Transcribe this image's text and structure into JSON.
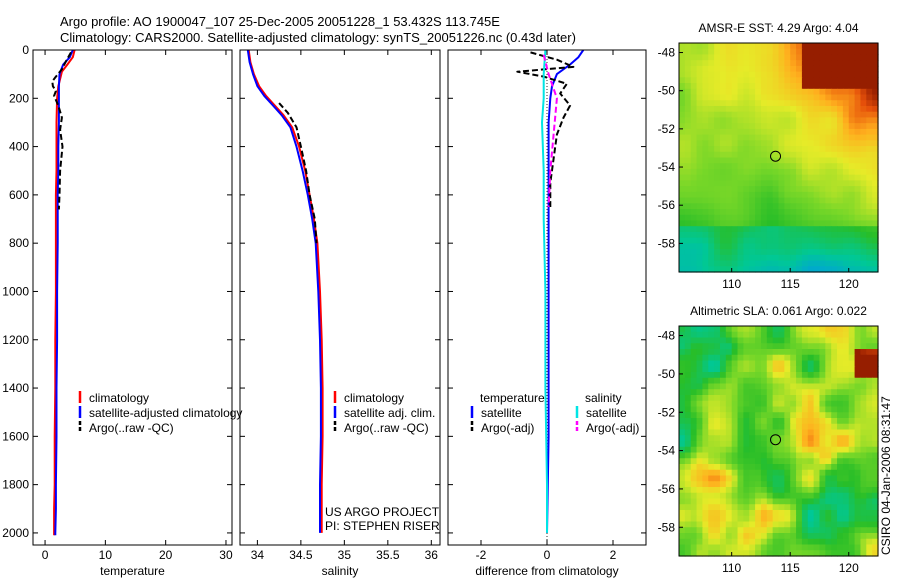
{
  "figure": {
    "title_line1": "Argo profile: AO 1900047_107 25-Dec-2005 20051228_1 53.432S 113.745E",
    "title_line2": "Climatology: CARS2000. Satellite-adjusted climatology: synTS_20051226.nc (0.43d later)",
    "side_caption": "CSIRO 04-Jan-2006 08:31:47"
  },
  "colors": {
    "climatology": "#ff0000",
    "satellite": "#0000ff",
    "argo": "#000000",
    "salinity_satellite": "#00e5e5",
    "salinity_argo": "#ff00ff",
    "marker": "#000000"
  },
  "chart_data": [
    {
      "id": "temperature",
      "type": "line",
      "xlabel": "temperature",
      "xlim": [
        -2,
        31
      ],
      "ylim": [
        0,
        2050
      ],
      "y_reversed": true,
      "xticks": [
        0,
        10,
        20,
        30
      ],
      "xtick_labels": [
        "0",
        "10",
        "20",
        "30"
      ],
      "yticks": [
        0,
        200,
        400,
        600,
        800,
        1000,
        1200,
        1400,
        1600,
        1800,
        2000
      ],
      "ytick_labels": [
        "0",
        "200",
        "400",
        "600",
        "800",
        "1000",
        "1200",
        "1400",
        "1600",
        "1800",
        "2000"
      ],
      "legend": {
        "location": "center-right",
        "entries": [
          "climatology",
          "satellite-adjusted climatology",
          "Argo(..raw -QC)"
        ]
      },
      "series": [
        {
          "name": "climatology",
          "color": "#ff0000",
          "dash": false,
          "x": [
            4.9,
            4.6,
            3.7,
            2.8,
            2.5,
            2.2,
            2.0,
            1.9,
            1.9,
            1.9,
            1.8,
            1.8,
            1.8,
            1.7,
            1.7,
            1.6,
            1.6,
            1.5,
            1.5,
            1.5
          ],
          "y": [
            0,
            30,
            60,
            90,
            120,
            150,
            200,
            300,
            400,
            500,
            600,
            800,
            1000,
            1200,
            1400,
            1600,
            1800,
            1900,
            2000,
            2010
          ]
        },
        {
          "name": "satellite-adjusted climatology",
          "color": "#0000ff",
          "dash": false,
          "x": [
            4.6,
            4.1,
            3.0,
            2.4,
            2.3,
            2.3,
            2.3,
            2.2,
            2.2,
            2.1,
            2.1,
            2.0,
            2.0,
            1.9,
            1.9,
            1.8,
            1.8,
            1.7,
            1.7
          ],
          "y": [
            0,
            30,
            60,
            100,
            150,
            200,
            300,
            400,
            500,
            600,
            800,
            1000,
            1200,
            1400,
            1600,
            1800,
            1900,
            2000,
            2010
          ]
        },
        {
          "name": "Argo(..raw -QC)",
          "color": "#000000",
          "dash": true,
          "x": [
            4.3,
            3.6,
            2.8,
            1.8,
            1.2,
            1.3,
            1.8,
            1.5,
            2.2,
            2.8,
            2.5,
            2.9,
            2.5,
            2.4,
            2.3
          ],
          "y": [
            10,
            40,
            80,
            110,
            130,
            150,
            170,
            190,
            230,
            280,
            330,
            400,
            500,
            600,
            660
          ]
        }
      ]
    },
    {
      "id": "salinity",
      "type": "line",
      "xlabel": "salinity",
      "xlim": [
        33.8,
        36.1
      ],
      "ylim": [
        0,
        2050
      ],
      "y_reversed": true,
      "xticks": [
        34,
        34.5,
        35,
        35.5,
        36
      ],
      "xtick_labels": [
        "34",
        "34.5",
        "35",
        "35.5",
        "36"
      ],
      "legend": {
        "location": "center-right",
        "entries": [
          "climatology",
          "satellite adj. clim.",
          "Argo(..raw -QC)"
        ]
      },
      "annotation": [
        "US ARGO PROJECT",
        "PI: STEPHEN RISER"
      ],
      "series": [
        {
          "name": "climatology",
          "color": "#ff0000",
          "dash": false,
          "x": [
            33.9,
            33.92,
            33.96,
            34.02,
            34.1,
            34.2,
            34.3,
            34.4,
            34.48,
            34.55,
            34.6,
            34.65,
            34.69,
            34.72,
            34.74,
            34.75,
            34.75,
            34.74,
            34.74
          ],
          "y": [
            0,
            50,
            100,
            150,
            190,
            230,
            270,
            320,
            400,
            500,
            600,
            700,
            800,
            1000,
            1200,
            1400,
            1600,
            1800,
            2000
          ]
        },
        {
          "name": "satellite adj. clim.",
          "color": "#0000ff",
          "dash": false,
          "x": [
            33.89,
            33.91,
            33.95,
            34.0,
            34.08,
            34.18,
            34.28,
            34.38,
            34.45,
            34.52,
            34.58,
            34.63,
            34.67,
            34.7,
            34.72,
            34.73,
            34.73,
            34.72,
            34.72
          ],
          "y": [
            0,
            50,
            100,
            150,
            190,
            230,
            270,
            320,
            400,
            500,
            600,
            700,
            800,
            1000,
            1200,
            1400,
            1600,
            1800,
            2000
          ]
        },
        {
          "name": "Argo(..raw -QC)",
          "color": "#000000",
          "dash": true,
          "x": [
            34.25,
            34.35,
            34.45,
            34.5,
            34.56,
            34.6,
            34.66,
            34.68
          ],
          "y": [
            220,
            260,
            320,
            400,
            500,
            600,
            700,
            800
          ]
        }
      ]
    },
    {
      "id": "difference",
      "type": "line",
      "xlabel": "difference from climatology",
      "xlim": [
        -3,
        3
      ],
      "ylim": [
        0,
        2050
      ],
      "y_reversed": true,
      "xticks": [
        -2,
        0,
        2
      ],
      "xtick_labels": [
        "-2",
        "0",
        "2"
      ],
      "legend": {
        "location": "center-right",
        "columns": [
          {
            "header": "temperature",
            "entries": [
              "satellite",
              "Argo(-adj)"
            ]
          },
          {
            "header": "salinity",
            "entries": [
              "satellite",
              "Argo(-adj)"
            ]
          }
        ]
      },
      "series": [
        {
          "name": "temperature satellite",
          "color": "#0000ff",
          "dash": false,
          "x": [
            1.1,
            0.95,
            0.7,
            0.3,
            0.15,
            0.1,
            0.05,
            0.05,
            0.05,
            0.05,
            0.05,
            0.0
          ],
          "y": [
            0,
            30,
            60,
            100,
            150,
            200,
            300,
            500,
            800,
            1200,
            1600,
            2000
          ]
        },
        {
          "name": "temperature Argo(-adj)",
          "color": "#000000",
          "dash": true,
          "x": [
            -0.5,
            0.3,
            0.8,
            -0.9,
            -0.1,
            0.6,
            0.4,
            0.7,
            0.5,
            0.3,
            0.2,
            0.1,
            0.1
          ],
          "y": [
            10,
            40,
            70,
            90,
            110,
            140,
            180,
            230,
            280,
            350,
            450,
            550,
            650
          ]
        },
        {
          "name": "salinity satellite",
          "color": "#00e5e5",
          "dash": false,
          "x": [
            -0.05,
            -0.1,
            -0.1,
            -0.15,
            -0.1,
            -0.1,
            -0.05,
            -0.05,
            0.0,
            0.0
          ],
          "y": [
            0,
            100,
            200,
            300,
            500,
            700,
            1000,
            1400,
            1800,
            2000
          ]
        },
        {
          "name": "salinity Argo(-adj)",
          "color": "#ff00ff",
          "dash": true,
          "x": [
            -0.1,
            0.05,
            0.3,
            0.2,
            0.1,
            0.05
          ],
          "y": [
            20,
            100,
            200,
            350,
            500,
            650
          ]
        }
      ]
    },
    {
      "id": "sst-map",
      "type": "heatmap",
      "title": "AMSR-E SST: 4.29 Argo: 4.04",
      "xlim": [
        105.5,
        122.5
      ],
      "ylim": [
        -59.5,
        -47.5
      ],
      "xticks": [
        110,
        115,
        120
      ],
      "xtick_labels": [
        "110",
        "115",
        "120"
      ],
      "yticks": [
        -48,
        -50,
        -52,
        -54,
        -56,
        -58
      ],
      "ytick_labels": [
        "-48",
        "-50",
        "-52",
        "-54",
        "-56",
        "-58"
      ],
      "marker": {
        "lon": 113.745,
        "lat": -53.432
      }
    },
    {
      "id": "sla-map",
      "type": "heatmap",
      "title": "Altimetric SLA: 0.061 Argo: 0.022",
      "xlim": [
        105.5,
        122.5
      ],
      "ylim": [
        -59.5,
        -47.5
      ],
      "xticks": [
        110,
        115,
        120
      ],
      "xtick_labels": [
        "110",
        "115",
        "120"
      ],
      "yticks": [
        -48,
        -50,
        -52,
        -54,
        -56,
        -58
      ],
      "ytick_labels": [
        "-48",
        "-50",
        "-52",
        "-54",
        "-56",
        "-58"
      ],
      "marker": {
        "lon": 113.745,
        "lat": -53.432
      }
    }
  ]
}
